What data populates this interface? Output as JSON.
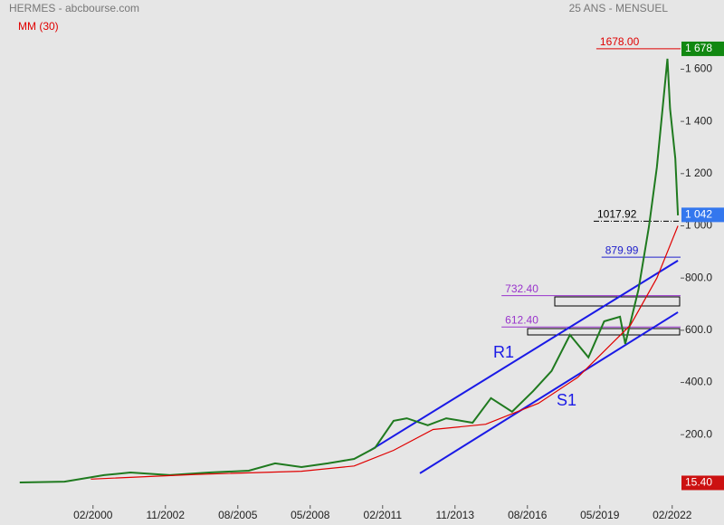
{
  "chart_data": {
    "type": "line",
    "title": "HERMES - abcbourse.com",
    "subtitle": "25 ANS - MENSUEL",
    "indicator_label": "MM (30)",
    "series": [
      {
        "name": "HERMES",
        "color": "#1f7a1f",
        "x": [
          1997.3,
          1999,
          2000.5,
          2001.5,
          2003,
          2004.5,
          2006,
          2007,
          2008,
          2009,
          2010,
          2010.8,
          2011.5,
          2012,
          2012.8,
          2013.5,
          2014.5,
          2015.2,
          2016,
          2016.8,
          2017.5,
          2018.2,
          2018.9,
          2019.5,
          2020.1,
          2020.3,
          2020.8,
          2021.2,
          2021.5,
          2021.9,
          2022.0,
          2022.2,
          2022.3
        ],
        "values": [
          17,
          20,
          45,
          55,
          45,
          55,
          62,
          90,
          76,
          90,
          107,
          150,
          253,
          263,
          236,
          263,
          246,
          340,
          288,
          367,
          444,
          582,
          496,
          634,
          652,
          548,
          756,
          998,
          1224,
          1640,
          1449,
          1258,
          1040
        ]
      },
      {
        "name": "MM (30)",
        "color": "#e00000",
        "x": [
          2000,
          2004,
          2008,
          2010,
          2011.5,
          2013,
          2015,
          2017,
          2018.5,
          2019.5,
          2020.5,
          2021.5,
          2022.3
        ],
        "values": [
          30,
          48,
          60,
          80,
          140,
          220,
          240,
          320,
          420,
          520,
          620,
          800,
          1000
        ]
      }
    ],
    "levels": [
      {
        "value": 1678,
        "label": "1678.00",
        "color": "#e00000",
        "from": 2019.2
      },
      {
        "value": 1017.92,
        "label": "1017.92",
        "color": "#000000",
        "from": 2019.1
      },
      {
        "value": 879.99,
        "label": "879.99",
        "color": "#2222cc",
        "from": 2019.4
      },
      {
        "value": 732.4,
        "label": "732.40",
        "color": "#9933cc",
        "from": 2015.6
      },
      {
        "value": 612.4,
        "label": "612.40",
        "color": "#9933cc",
        "from": 2015.6
      }
    ],
    "channels": [
      {
        "label": "R1",
        "x": [
          2010.6,
          2022.3
        ],
        "y": [
          139,
          867
        ]
      },
      {
        "label": "S1",
        "x": [
          2012.5,
          2022.3
        ],
        "y": [
          52,
          669
        ]
      }
    ],
    "price_tags": [
      {
        "value": 1678,
        "label": "1 678",
        "color": "#118811"
      },
      {
        "value": 1042,
        "label": "1 042",
        "color": "#3377ee"
      },
      {
        "value": 15.4,
        "label": "15.40",
        "color": "#cc1111"
      }
    ],
    "xlim": [
      1997.1,
      2022.4
    ],
    "ylim": [
      -35,
      1865
    ],
    "xticks": [
      {
        "value": 2000.083,
        "label": "02/2000"
      },
      {
        "value": 2002.833,
        "label": "11/2002"
      },
      {
        "value": 2005.583,
        "label": "08/2005"
      },
      {
        "value": 2008.333,
        "label": "05/2008"
      },
      {
        "value": 2011.083,
        "label": "02/2011"
      },
      {
        "value": 2013.833,
        "label": "11/2013"
      },
      {
        "value": 2016.583,
        "label": "08/2016"
      },
      {
        "value": 2019.333,
        "label": "05/2019"
      },
      {
        "value": 2022.083,
        "label": "02/2022"
      }
    ],
    "yticks": [
      {
        "value": 200,
        "label": "200.0"
      },
      {
        "value": 400,
        "label": "400.0"
      },
      {
        "value": 600,
        "label": "600.0"
      },
      {
        "value": 800,
        "label": "800.0"
      },
      {
        "value": 1000,
        "label": "1 000"
      },
      {
        "value": 1200,
        "label": "1 200"
      },
      {
        "value": 1400,
        "label": "1 400"
      },
      {
        "value": 1600,
        "label": "1 600"
      }
    ]
  }
}
